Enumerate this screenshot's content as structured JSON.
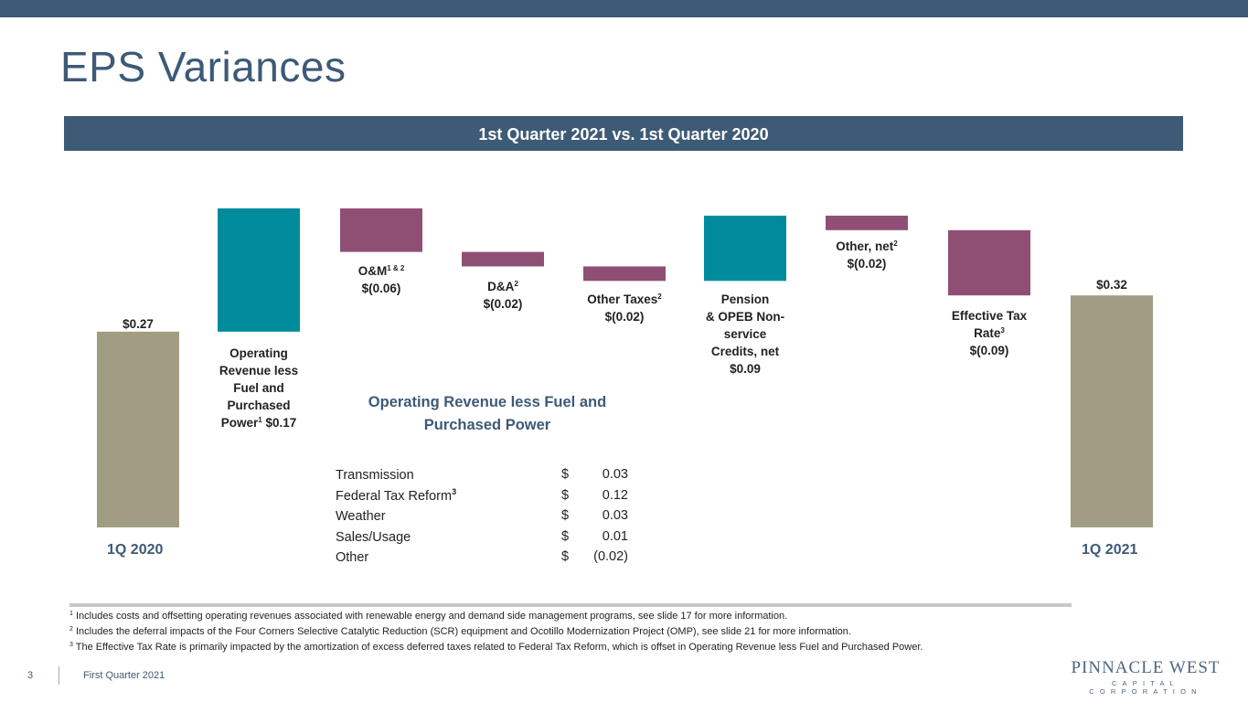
{
  "title": "EPS Variances",
  "subtitle": "1st Quarter  2021 vs. 1st Quarter  2020",
  "colors": {
    "header": "#3d5a77",
    "base": "#a09d83",
    "positive": "#008b9d",
    "negative": "#8f4f75"
  },
  "chart_data": {
    "type": "bar",
    "subtype": "waterfall",
    "categories": [
      "1Q 2020",
      "Operating Revenue less Fuel and Purchased Power",
      "O&M",
      "D&A",
      "Other Taxes",
      "Pension & OPEB Non-service Credits, net",
      "Other, net",
      "Effective Tax Rate",
      "1Q 2021"
    ],
    "values": [
      0.27,
      0.17,
      -0.06,
      -0.02,
      -0.02,
      0.09,
      -0.02,
      -0.09,
      0.32
    ],
    "kinds": [
      "total",
      "delta",
      "delta",
      "delta",
      "delta",
      "delta",
      "delta",
      "delta",
      "total"
    ],
    "unit": "$"
  },
  "labels": {
    "start_value": "$0.27",
    "start_axis": "1Q 2020",
    "end_value": "$0.32",
    "end_axis": "1Q 2021",
    "op_rev": {
      "l1": "Operating",
      "l2": "Revenue less",
      "l3": "Fuel and",
      "l4": "Purchased",
      "l5a": "Power",
      "sup": "1",
      "l5b": " $0.17"
    },
    "om": {
      "name": "O&M",
      "sup": "1 & 2",
      "value": "$(0.06)"
    },
    "da": {
      "name": "D&A",
      "sup": "2",
      "value": "$(0.02)"
    },
    "taxes": {
      "name": "Other Taxes",
      "sup": "2",
      "value": "$(0.02)"
    },
    "pension": {
      "l1": "Pension",
      "l2": "& OPEB Non-",
      "l3": "service",
      "l4": "Credits, net",
      "value": "$0.09"
    },
    "other": {
      "name": "Other, net",
      "sup": "2",
      "value": "$(0.02)"
    },
    "etr": {
      "l1": "Effective Tax",
      "l2": "Rate",
      "sup": "3",
      "value": "$(0.09)"
    }
  },
  "breakdown": {
    "title_l1": "Operating Revenue less Fuel and",
    "title_l2": "Purchased Power",
    "rows": [
      {
        "name": "Transmission",
        "sup": "",
        "currency": "$",
        "value": "0.03"
      },
      {
        "name": "Federal Tax Reform",
        "sup": "3",
        "currency": "$",
        "value": "0.12"
      },
      {
        "name": "Weather",
        "sup": "",
        "currency": "$",
        "value": "0.03"
      },
      {
        "name": "Sales/Usage",
        "sup": "",
        "currency": "$",
        "value": "0.01"
      },
      {
        "name": "Other",
        "sup": "",
        "currency": "$",
        "value": "(0.02)"
      }
    ]
  },
  "footnotes": [
    {
      "sup": "1",
      "text": " Includes costs and offsetting operating revenues  associated with renewable  energy  and demand  side management  programs, see  slide 17 for more  information."
    },
    {
      "sup": "2",
      "text": " Includes the deferral impacts of the  Four Corners Selective Catalytic Reduction (SCR) equipment  and Ocotillo Modernization Project (OMP), see slide 21 for more  information."
    },
    {
      "sup": "3",
      "text": " The Effective Tax Rate is primarily impacted by the  amortization of excess deferred  taxes related to Federal  Tax Reform,  which is offset in Operating Revenue  less Fuel and Purchased Power."
    }
  ],
  "footer": {
    "page": "3",
    "text": "First Quarter 2021"
  },
  "logo": {
    "line1": "PINNACLE WEST",
    "line2": "CAPITAL CORPORATION"
  }
}
